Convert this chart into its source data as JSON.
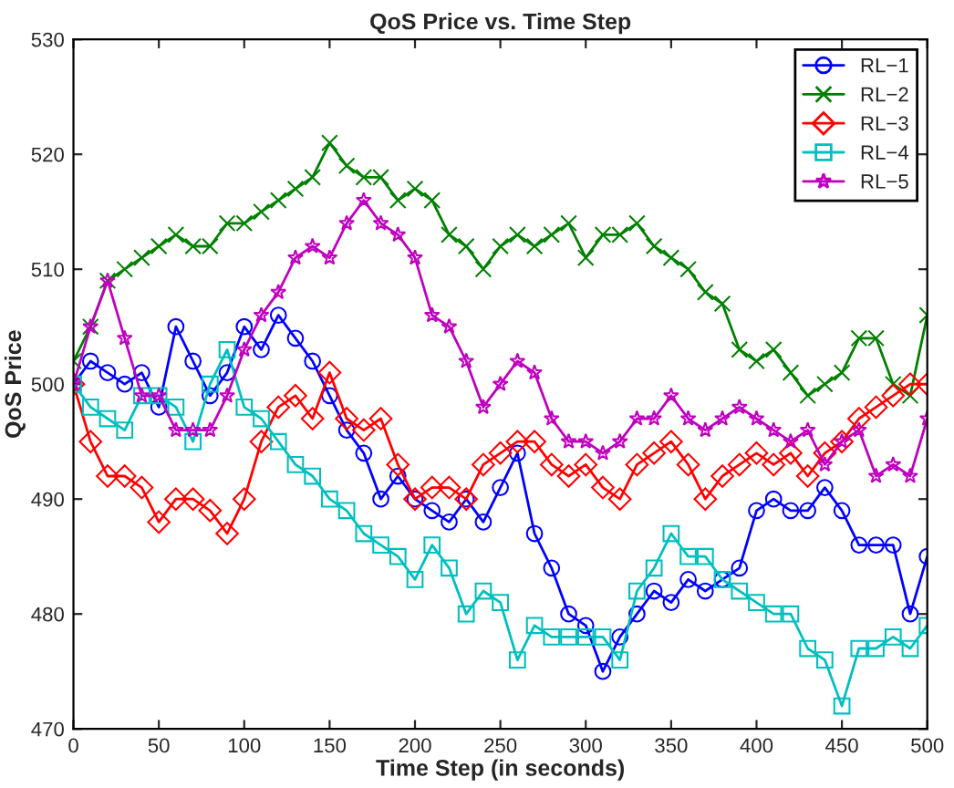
{
  "chart_data": {
    "type": "line",
    "title": "QoS Price vs. Time Step",
    "xlabel": "Time Step (in seconds)",
    "ylabel": "QoS Price",
    "x": [
      0,
      10,
      20,
      30,
      40,
      50,
      60,
      70,
      80,
      90,
      100,
      110,
      120,
      130,
      140,
      150,
      160,
      170,
      180,
      190,
      200,
      210,
      220,
      230,
      240,
      250,
      260,
      270,
      280,
      290,
      300,
      310,
      320,
      330,
      340,
      350,
      360,
      370,
      380,
      390,
      400,
      410,
      420,
      430,
      440,
      450,
      460,
      470,
      480,
      490,
      500
    ],
    "xlim": [
      0,
      500
    ],
    "xticks": [
      0,
      50,
      100,
      150,
      200,
      250,
      300,
      350,
      400,
      450,
      500
    ],
    "ylim": [
      470,
      530
    ],
    "yticks": [
      470,
      480,
      490,
      500,
      510,
      520,
      530
    ],
    "legend": "top right",
    "grid": false,
    "line_style": "solid",
    "series": [
      {
        "name": "RL−1",
        "color": "#0000ff",
        "marker": "circle",
        "values": [
          500,
          502,
          501,
          500,
          501,
          498,
          505,
          502,
          499,
          501,
          505,
          503,
          506,
          504,
          502,
          499,
          496,
          494,
          490,
          492,
          490,
          489,
          488,
          490,
          488,
          491,
          494,
          487,
          484,
          480,
          479,
          475,
          478,
          480,
          482,
          481,
          483,
          482,
          483,
          484,
          489,
          490,
          489,
          489,
          491,
          489,
          486,
          486,
          486,
          480,
          485
        ]
      },
      {
        "name": "RL−2",
        "color": "#008000",
        "marker": "cross",
        "values": [
          502,
          505,
          509,
          510,
          511,
          512,
          513,
          512,
          512,
          514,
          514,
          515,
          516,
          517,
          518,
          521,
          519,
          518,
          518,
          516,
          517,
          516,
          513,
          512,
          510,
          512,
          513,
          512,
          513,
          514,
          511,
          513,
          513,
          514,
          512,
          511,
          510,
          508,
          507,
          503,
          502,
          503,
          501,
          499,
          500,
          501,
          504,
          504,
          500,
          499,
          506
        ]
      },
      {
        "name": "RL−3",
        "color": "#ff0000",
        "marker": "diamond",
        "values": [
          500,
          495,
          492,
          492,
          491,
          488,
          490,
          490,
          489,
          487,
          490,
          495,
          498,
          499,
          497,
          501,
          497,
          496,
          497,
          493,
          490,
          491,
          491,
          490,
          493,
          494,
          495,
          495,
          493,
          492,
          493,
          491,
          490,
          493,
          494,
          495,
          493,
          490,
          492,
          493,
          494,
          493,
          494,
          492,
          494,
          495,
          497,
          498,
          499,
          500,
          500
        ]
      },
      {
        "name": "RL−4",
        "color": "#00bfbf",
        "marker": "square",
        "values": [
          500,
          498,
          497,
          496,
          499,
          499,
          498,
          495,
          500,
          503,
          498,
          497,
          495,
          493,
          492,
          490,
          489,
          487,
          486,
          485,
          483,
          486,
          484,
          480,
          482,
          481,
          476,
          479,
          478,
          478,
          478,
          478,
          476,
          482,
          484,
          487,
          485,
          485,
          483,
          482,
          481,
          480,
          480,
          477,
          476,
          472,
          477,
          477,
          478,
          477,
          479
        ]
      },
      {
        "name": "RL−5",
        "color": "#bf00bf",
        "marker": "star",
        "values": [
          500,
          505,
          509,
          504,
          499,
          499,
          496,
          496,
          496,
          499,
          503,
          506,
          508,
          511,
          512,
          511,
          514,
          516,
          514,
          513,
          511,
          506,
          505,
          502,
          498,
          500,
          502,
          501,
          497,
          495,
          495,
          494,
          495,
          497,
          497,
          499,
          497,
          496,
          497,
          498,
          497,
          496,
          495,
          496,
          493,
          495,
          496,
          492,
          493,
          492,
          497
        ]
      }
    ]
  }
}
